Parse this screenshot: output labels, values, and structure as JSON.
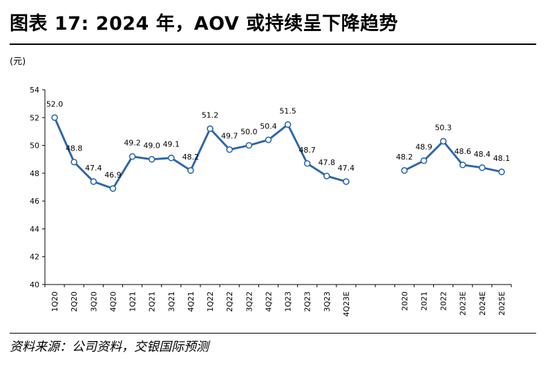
{
  "header": {
    "title": "图表 17: 2024 年，AOV 或持续呈下降趋势"
  },
  "unit_label": "(元)",
  "source": "资料来源：公司资料，交银国际预测",
  "colors": {
    "line": "#2E66A8",
    "marker_fill": "#ffffff",
    "axis": "#000000"
  },
  "chart_data": {
    "type": "line",
    "title": "",
    "xlabel": "",
    "ylabel": "(元)",
    "ylim": [
      40,
      54
    ],
    "yticks": [
      40,
      42,
      44,
      46,
      48,
      50,
      52,
      54
    ],
    "grid": false,
    "series": [
      {
        "categories": [
          "1Q20",
          "2Q20",
          "3Q20",
          "4Q20",
          "1Q21",
          "2Q21",
          "3Q21",
          "4Q21",
          "1Q22",
          "2Q22",
          "3Q22",
          "4Q22",
          "1Q23",
          "2Q23",
          "3Q23",
          "4Q23E"
        ],
        "values": [
          52.0,
          48.8,
          47.4,
          46.9,
          49.2,
          49.0,
          49.1,
          48.2,
          51.2,
          49.7,
          50.0,
          50.4,
          51.5,
          48.7,
          47.8,
          47.4
        ],
        "labels": [
          "52.0",
          "48.8",
          "47.4",
          "46.9",
          "49.2",
          "49.0",
          "49.1",
          "48.2",
          "51.2",
          "49.7",
          "50.0",
          "50.4",
          "51.5",
          "48.7",
          "47.8",
          "47.4"
        ]
      },
      {
        "categories": [
          "2020",
          "2021",
          "2022",
          "2023E",
          "2024E",
          "2025E"
        ],
        "values": [
          48.2,
          48.9,
          50.3,
          48.6,
          48.4,
          48.1
        ],
        "labels": [
          "48.2",
          "48.9",
          "50.3",
          "48.6",
          "48.4",
          "48.1"
        ]
      }
    ]
  }
}
